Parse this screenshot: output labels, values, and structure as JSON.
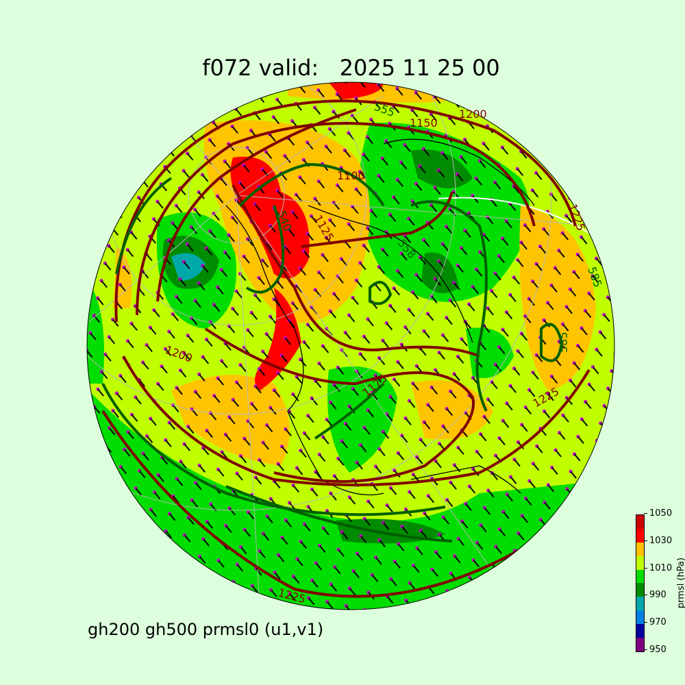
{
  "title": "f072 valid:   2025 11 25 00",
  "footer": "gh200 gh500 prmsl0 (u1,v1)",
  "colorbar": {
    "label": "prmsl (hPa)",
    "ticks": [
      "950",
      "970",
      "990",
      "1010",
      "1030",
      "1050"
    ],
    "levels": [
      950,
      960,
      970,
      980,
      990,
      1000,
      1010,
      1020,
      1030,
      1040,
      1050
    ],
    "colors": [
      "#800080",
      "#0000a0",
      "#0080e0",
      "#00a8a8",
      "#008c00",
      "#00dd00",
      "#c0ff00",
      "#ffc400",
      "#ff0000",
      "#cc0000"
    ]
  },
  "contour_labels": {
    "gh200": [
      "1200",
      "1150",
      "1100",
      "1125",
      "1225",
      "1200",
      "1175",
      "1225",
      "1225"
    ],
    "gh500": [
      "555",
      "540",
      "585",
      "585",
      "558"
    ]
  },
  "colors": {
    "gh200_line": "#800000",
    "gh500_line": "#006000",
    "wind_points": "#cc00cc",
    "background": "#ddffdd"
  }
}
